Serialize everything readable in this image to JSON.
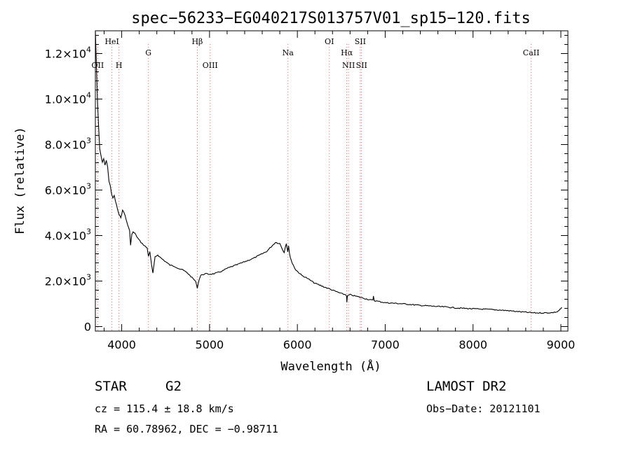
{
  "chart_data": {
    "type": "line",
    "title": "spec−56233−EG040217S013757V01_sp15−120.fits",
    "xlabel": "Wavelength (Å)",
    "ylabel": "Flux (relative)",
    "xlim": [
      3700,
      9080
    ],
    "ylim": [
      -200,
      13000
    ],
    "x_ticks": [
      {
        "value": 4000,
        "label": "4000"
      },
      {
        "value": 5000,
        "label": "5000"
      },
      {
        "value": 6000,
        "label": "6000"
      },
      {
        "value": 7000,
        "label": "7000"
      },
      {
        "value": 8000,
        "label": "8000"
      },
      {
        "value": 9000,
        "label": "9000"
      }
    ],
    "y_ticks": [
      {
        "value": 0,
        "mant": "0",
        "exp": ""
      },
      {
        "value": 2000,
        "mant": "2.0×10",
        "exp": "3"
      },
      {
        "value": 4000,
        "mant": "4.0×10",
        "exp": "3"
      },
      {
        "value": 6000,
        "mant": "6.0×10",
        "exp": "3"
      },
      {
        "value": 8000,
        "mant": "8.0×10",
        "exp": "3"
      },
      {
        "value": 10000,
        "mant": "1.0×10",
        "exp": "4"
      },
      {
        "value": 12000,
        "mant": "1.2×10",
        "exp": "4"
      }
    ],
    "emission_lines": [
      {
        "label": "OII",
        "wavelength": 3727,
        "row": "lower"
      },
      {
        "label": "HeI",
        "wavelength": 3889,
        "row": "upper"
      },
      {
        "label": "H",
        "wavelength": 3969,
        "row": "lower"
      },
      {
        "label": "G",
        "wavelength": 4304,
        "row": "middle"
      },
      {
        "label": "Hβ",
        "wavelength": 4861,
        "row": "upper"
      },
      {
        "label": "OIII",
        "wavelength": 5007,
        "row": "lower"
      },
      {
        "label": "Na",
        "wavelength": 5893,
        "row": "middle"
      },
      {
        "label": "OI",
        "wavelength": 6364,
        "row": "upper"
      },
      {
        "label": "Hα",
        "wavelength": 6563,
        "row": "middle"
      },
      {
        "label": "NII",
        "wavelength": 6583,
        "row": "lower"
      },
      {
        "label": "SII",
        "wavelength": 6716,
        "row": "upper"
      },
      {
        "label": "SII",
        "wavelength": 6731,
        "row": "lower"
      },
      {
        "label": "CaII",
        "wavelength": 8662,
        "row": "middle"
      }
    ],
    "series": [
      {
        "color": "#000000",
        "x": [
          3700,
          3712,
          3725,
          3738,
          3750,
          3765,
          3780,
          3795,
          3810,
          3825,
          3840,
          3855,
          3870,
          3885,
          3900,
          3915,
          3930,
          3950,
          3970,
          3990,
          4010,
          4030,
          4050,
          4070,
          4090,
          4101,
          4115,
          4130,
          4150,
          4180,
          4220,
          4260,
          4290,
          4304,
          4320,
          4340,
          4355,
          4380,
          4410,
          4450,
          4500,
          4550,
          4600,
          4650,
          4700,
          4750,
          4800,
          4840,
          4861,
          4880,
          4900,
          4950,
          5000,
          5050,
          5100,
          5150,
          5200,
          5300,
          5400,
          5500,
          5600,
          5650,
          5700,
          5750,
          5800,
          5830,
          5850,
          5862,
          5875,
          5890,
          5900,
          5910,
          5920,
          5940,
          5980,
          6050,
          6100,
          6200,
          6300,
          6400,
          6500,
          6550,
          6560,
          6563,
          6570,
          6600,
          6700,
          6800,
          6860,
          6866,
          6875,
          7000,
          7200,
          7400,
          7600,
          7700,
          7800,
          8000,
          8200,
          8400,
          8500,
          8600,
          8700,
          8800,
          8900,
          8960,
          8990,
          9000,
          9010
        ],
        "y": [
          13000,
          11500,
          9800,
          8700,
          7800,
          7500,
          7200,
          7400,
          7100,
          7300,
          7000,
          6400,
          6200,
          5800,
          5650,
          5750,
          5500,
          5200,
          4900,
          4800,
          5100,
          5000,
          4700,
          4450,
          4200,
          3600,
          4050,
          4150,
          4100,
          3900,
          3700,
          3550,
          3450,
          3100,
          3300,
          2700,
          2350,
          3050,
          3150,
          3000,
          2850,
          2700,
          2650,
          2550,
          2480,
          2350,
          2150,
          2000,
          1700,
          2050,
          2250,
          2320,
          2300,
          2320,
          2380,
          2450,
          2560,
          2700,
          2850,
          3000,
          3200,
          3300,
          3500,
          3700,
          3650,
          3400,
          3250,
          3500,
          3650,
          3300,
          3550,
          3200,
          3050,
          2800,
          2500,
          2250,
          2150,
          1900,
          1750,
          1600,
          1450,
          1400,
          1350,
          1050,
          1350,
          1400,
          1300,
          1200,
          1150,
          1350,
          1140,
          1050,
          1000,
          930,
          880,
          860,
          820,
          780,
          750,
          700,
          660,
          630,
          600,
          600,
          610,
          650,
          750,
          780,
          850
        ]
      }
    ],
    "grid": false
  },
  "info": {
    "object_class": "STAR",
    "subclass": "G2",
    "survey": "LAMOST DR2",
    "cz": "cz = 115.4 ± 18.8 km/s",
    "obs_date": "Obs−Date: 20121101",
    "radec": "RA =  60.78962, DEC =  −0.98711"
  }
}
